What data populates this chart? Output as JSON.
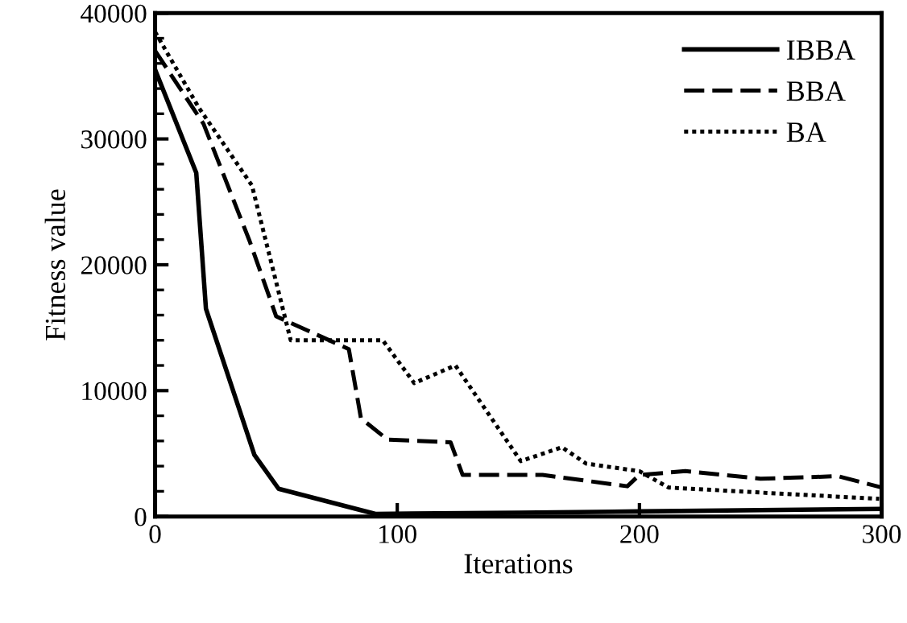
{
  "chart_data": {
    "type": "line",
    "xlabel": "Iterations",
    "ylabel": "Fitness value",
    "xlim": [
      0,
      300
    ],
    "xticks": [
      0,
      100,
      200,
      300
    ],
    "ylim": [
      0,
      40000
    ],
    "yticks": [
      0,
      10000,
      20000,
      30000,
      40000
    ],
    "grid": false,
    "legend": "top right",
    "marker": "none",
    "series": [
      {
        "name": "IBBA",
        "color": "#000000",
        "line_style": "solid",
        "x": [
          0,
          17,
          21,
          41,
          51,
          91,
          150,
          200,
          250,
          300
        ],
        "values": [
          35500,
          27300,
          16500,
          4900,
          2200,
          200,
          300,
          400,
          500,
          600
        ]
      },
      {
        "name": "BBA",
        "color": "#000000",
        "line_style": "dashed",
        "x": [
          0,
          20,
          39,
          50,
          80,
          85,
          96,
          122,
          127,
          160,
          195,
          200,
          219,
          250,
          282,
          300
        ],
        "values": [
          37000,
          31200,
          21900,
          15900,
          13300,
          7800,
          6100,
          5900,
          3300,
          3300,
          2400,
          3300,
          3600,
          3000,
          3200,
          2300
        ]
      },
      {
        "name": "BA",
        "color": "#000000",
        "line_style": "dotted",
        "x": [
          0,
          18,
          40,
          56,
          94,
          107,
          124,
          151,
          168,
          178,
          200,
          212,
          250,
          299
        ],
        "values": [
          38500,
          32500,
          26300,
          14000,
          14000,
          10600,
          12000,
          4400,
          5500,
          4200,
          3600,
          2300,
          1900,
          1400
        ]
      }
    ]
  }
}
